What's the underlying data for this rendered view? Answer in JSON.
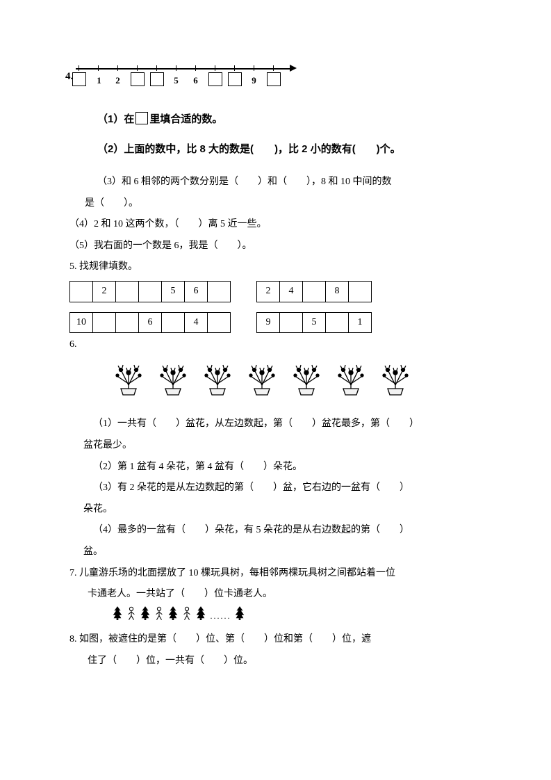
{
  "q4": {
    "number": "4.",
    "line_labels": [
      "1",
      "2",
      "5",
      "6",
      "9"
    ],
    "p1": "（1）在",
    "p1b": "里填合适的数。",
    "p2": "（2）上面的数中，比 8 大的数是(　　)，比 2 小的数有(　　)个。",
    "p3a": "（3）和 6 相邻的两个数分别是（　　）和（　　），8 和 10 中间的数",
    "p3b": "是（　　）。",
    "p4": "（4）2 和 10 这两个数，（　　）离 5 近一些。",
    "p5": "（5）我右面的一个数是 6，我是（　　）。"
  },
  "q5": {
    "title": "5. 找规律填数。",
    "tableA": [
      "",
      "2",
      "",
      "",
      "5",
      "6",
      ""
    ],
    "tableB": [
      "2",
      "4",
      "",
      "8",
      ""
    ],
    "tableC": [
      "10",
      "",
      "",
      "6",
      "",
      "4",
      ""
    ],
    "tableD": [
      "9",
      "",
      "5",
      "",
      "1"
    ]
  },
  "q6": {
    "title": "6.",
    "pot_count": 7,
    "p1": "（1）一共有（　　）盆花，从左边数起，第（　　）盆花最多，第（　　）",
    "p1b": "盆花最少。",
    "p2": "（2）第 1 盆有 4 朵花，第 4 盆有（　　）朵花。",
    "p3": "（3）有 2 朵花的是从左边数起的第（　　）盆，它右边的一盆有（　　）",
    "p3b": "朵花。",
    "p4": "（4）最多的一盆有（　　）朵花，有 5 朵花的是从右边数起的第（　　）",
    "p4b": "盆。"
  },
  "q7": {
    "l1": "7. 儿童游乐场的北面摆放了 10 棵玩具树，每相邻两棵玩具树之间都站着一位",
    "l2": "卡通老人。一共站了（　　）位卡通老人。"
  },
  "q8": {
    "l1": "8. 如图，被遮住的是第（　　）位、第（　　）位和第（　　）位，遮",
    "l2": "住了（　　）位，一共有（　　）位。"
  },
  "style": {
    "page_bg": "#ffffff",
    "text_color": "#000000",
    "box_border": "#000000"
  }
}
